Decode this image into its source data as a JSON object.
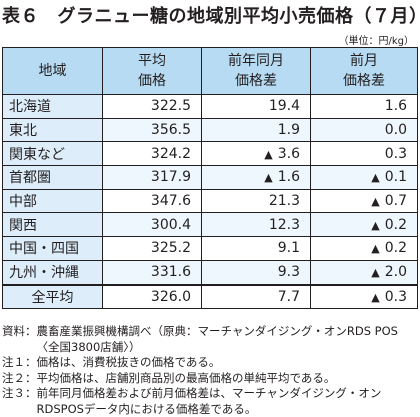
{
  "title": "表６　グラニュー糖の地域別平均小売価格（７月）",
  "unit": "（単位：円/kg）",
  "headers": {
    "region": "地域",
    "price": [
      "平均",
      "価格"
    ],
    "yoy": [
      "前年同月",
      "価格差"
    ],
    "mom": [
      "前月",
      "価格差"
    ]
  },
  "rows": [
    {
      "region": "北海道",
      "price": "322.5",
      "yoy_tri": "",
      "yoy": "19.4",
      "mom_tri": "",
      "mom": "1.6"
    },
    {
      "region": "東北",
      "price": "356.5",
      "yoy_tri": "",
      "yoy": "1.9",
      "mom_tri": "",
      "mom": "0.0"
    },
    {
      "region": "関東など",
      "price": "324.2",
      "yoy_tri": "▲",
      "yoy": "3.6",
      "mom_tri": "",
      "mom": "0.3"
    },
    {
      "region": "首都圏",
      "price": "317.9",
      "yoy_tri": "▲",
      "yoy": "1.6",
      "mom_tri": "▲",
      "mom": "0.1"
    },
    {
      "region": "中部",
      "price": "347.6",
      "yoy_tri": "",
      "yoy": "21.3",
      "mom_tri": "▲",
      "mom": "0.7"
    },
    {
      "region": "関西",
      "price": "300.4",
      "yoy_tri": "",
      "yoy": "12.3",
      "mom_tri": "▲",
      "mom": "0.2"
    },
    {
      "region": "中国・四国",
      "price": "325.2",
      "yoy_tri": "",
      "yoy": "9.1",
      "mom_tri": "▲",
      "mom": "0.2"
    },
    {
      "region": "九州・沖縄",
      "price": "331.6",
      "yoy_tri": "",
      "yoy": "9.3",
      "mom_tri": "▲",
      "mom": "2.0"
    },
    {
      "region": "全平均",
      "price": "326.0",
      "yoy_tri": "",
      "yoy": "7.7",
      "mom_tri": "▲",
      "mom": "0.3"
    }
  ],
  "notes": [
    {
      "label": "資料：",
      "text": "農畜産業振興機構調べ（原典：マーチャンダイジング・オンRDS POS〈全国3800店舗〉）"
    },
    {
      "label": "注１：",
      "text": "価格は、消費税抜きの価格である。"
    },
    {
      "label": "注２：",
      "text": "平均価格は、店舗別商品別の最高価格の単純平均である。"
    },
    {
      "label": "注３：",
      "text": "前年同月価格差および前月価格差は、マーチャンダイジング・オンRDSPOSデータ内における価格差である。"
    }
  ],
  "colors": {
    "header_bg": "#b7dbf2",
    "region_bg": "#ddeefa",
    "alt_row_bg": "#eef7fd"
  }
}
